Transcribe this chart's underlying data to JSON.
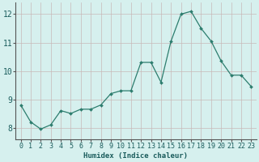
{
  "x": [
    0,
    1,
    2,
    3,
    4,
    5,
    6,
    7,
    8,
    9,
    10,
    11,
    12,
    13,
    14,
    15,
    16,
    17,
    18,
    19,
    20,
    21,
    22,
    23
  ],
  "y": [
    8.8,
    8.2,
    7.95,
    8.1,
    8.6,
    8.5,
    8.65,
    8.65,
    8.8,
    9.2,
    9.3,
    9.3,
    10.3,
    10.3,
    9.6,
    11.05,
    12.0,
    12.1,
    11.5,
    11.05,
    10.35,
    9.85,
    9.85,
    9.45
  ],
  "line_color": "#2d7d6e",
  "marker_color": "#2d7d6e",
  "bg_color": "#d6f0ee",
  "hgrid_color": "#c8b8b8",
  "vgrid_color": "#c8b8b8",
  "xlabel": "Humidex (Indice chaleur)",
  "xlabel_color": "#1a5c5c",
  "tick_color": "#1a5c5c",
  "ylim": [
    7.6,
    12.4
  ],
  "yticks": [
    8,
    9,
    10,
    11,
    12
  ],
  "xlim": [
    -0.5,
    23.5
  ],
  "xticks": [
    0,
    1,
    2,
    3,
    4,
    5,
    6,
    7,
    8,
    9,
    10,
    11,
    12,
    13,
    14,
    15,
    16,
    17,
    18,
    19,
    20,
    21,
    22,
    23
  ],
  "xlabel_fontsize": 6.5,
  "tick_fontsize": 6.0,
  "ytick_fontsize": 7.0
}
